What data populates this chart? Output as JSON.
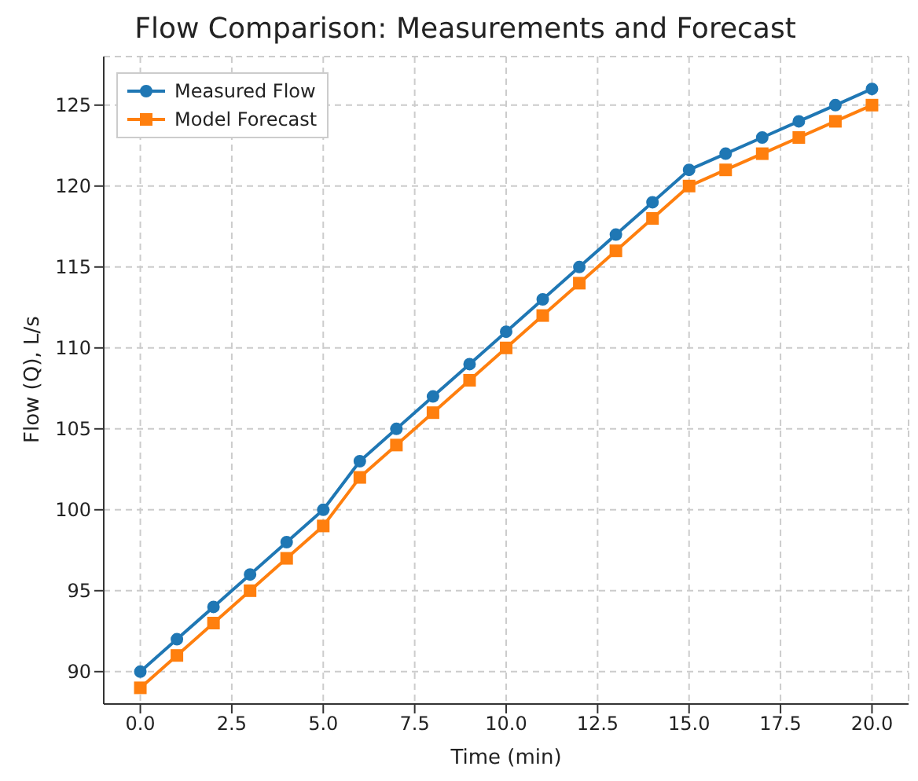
{
  "chart_data": {
    "type": "line",
    "title": "Flow Comparison: Measurements and Forecast",
    "xlabel": "Time (min)",
    "ylabel": "Flow (Q), L/s",
    "x": [
      0,
      1,
      2,
      3,
      4,
      5,
      6,
      7,
      8,
      9,
      10,
      11,
      12,
      13,
      14,
      15,
      16,
      17,
      18,
      19,
      20
    ],
    "series": [
      {
        "name": "Measured Flow",
        "color": "#1f77b4",
        "marker": "circle",
        "values": [
          90,
          92,
          94,
          96,
          98,
          100,
          103,
          105,
          107,
          109,
          111,
          113,
          115,
          117,
          119,
          121,
          122,
          123,
          124,
          125,
          126
        ]
      },
      {
        "name": "Model Forecast",
        "color": "#ff7f0e",
        "marker": "square",
        "values": [
          89,
          91,
          93,
          95,
          97,
          99,
          102,
          104,
          106,
          108,
          110,
          112,
          114,
          116,
          118,
          120,
          121,
          122,
          123,
          124,
          125
        ]
      }
    ],
    "xlim": [
      -1,
      21
    ],
    "xticks": [
      {
        "value": 0,
        "label": "0.0"
      },
      {
        "value": 2.5,
        "label": "2.5"
      },
      {
        "value": 5,
        "label": "5.0"
      },
      {
        "value": 7.5,
        "label": "7.5"
      },
      {
        "value": 10,
        "label": "10.0"
      },
      {
        "value": 12.5,
        "label": "12.5"
      },
      {
        "value": 15,
        "label": "15.0"
      },
      {
        "value": 17.5,
        "label": "17.5"
      },
      {
        "value": 20,
        "label": "20.0"
      }
    ],
    "ylim": [
      88,
      128
    ],
    "yticks": [
      90,
      95,
      100,
      105,
      110,
      115,
      120,
      125
    ],
    "grid": true,
    "legend": "top left",
    "line_style": "solid"
  }
}
